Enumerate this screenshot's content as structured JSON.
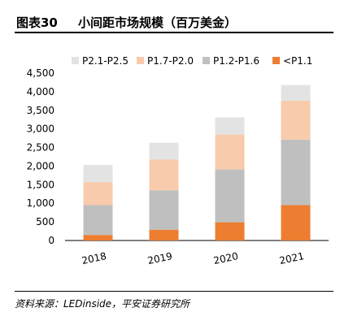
{
  "figure": {
    "label": "图表30",
    "title": "小间距市场规模（百万美金）",
    "source": "资料来源：LEDinside，平安证券研究所"
  },
  "chart_data": {
    "type": "bar",
    "stacked": true,
    "categories": [
      "2018",
      "2019",
      "2020",
      "2021"
    ],
    "ylim": [
      0,
      4500
    ],
    "yticks": [
      "0",
      "500",
      "1,000",
      "1,500",
      "2,000",
      "2,500",
      "3,000",
      "3,500",
      "4,000",
      "4,500"
    ],
    "ytick_values": [
      0,
      500,
      1000,
      1500,
      2000,
      2500,
      3000,
      3500,
      4000,
      4500
    ],
    "grid": false,
    "legend_position": "top",
    "series": [
      {
        "name": "<P1.1",
        "color": "#ED7D31",
        "values": [
          150,
          290,
          490,
          950
        ]
      },
      {
        "name": "P1.2-P1.6",
        "color": "#BFBFBF",
        "values": [
          800,
          1060,
          1420,
          1760
        ]
      },
      {
        "name": "P1.7-P2.0",
        "color": "#F8CBAD",
        "values": [
          620,
          830,
          940,
          1050
        ]
      },
      {
        "name": "P2.1-P2.5",
        "color": "#E3E3E3",
        "values": [
          460,
          450,
          460,
          420
        ]
      }
    ],
    "legend_order": [
      "P2.1-P2.5",
      "P1.7-P2.0",
      "P1.2-P1.6",
      "<P1.1"
    ]
  }
}
